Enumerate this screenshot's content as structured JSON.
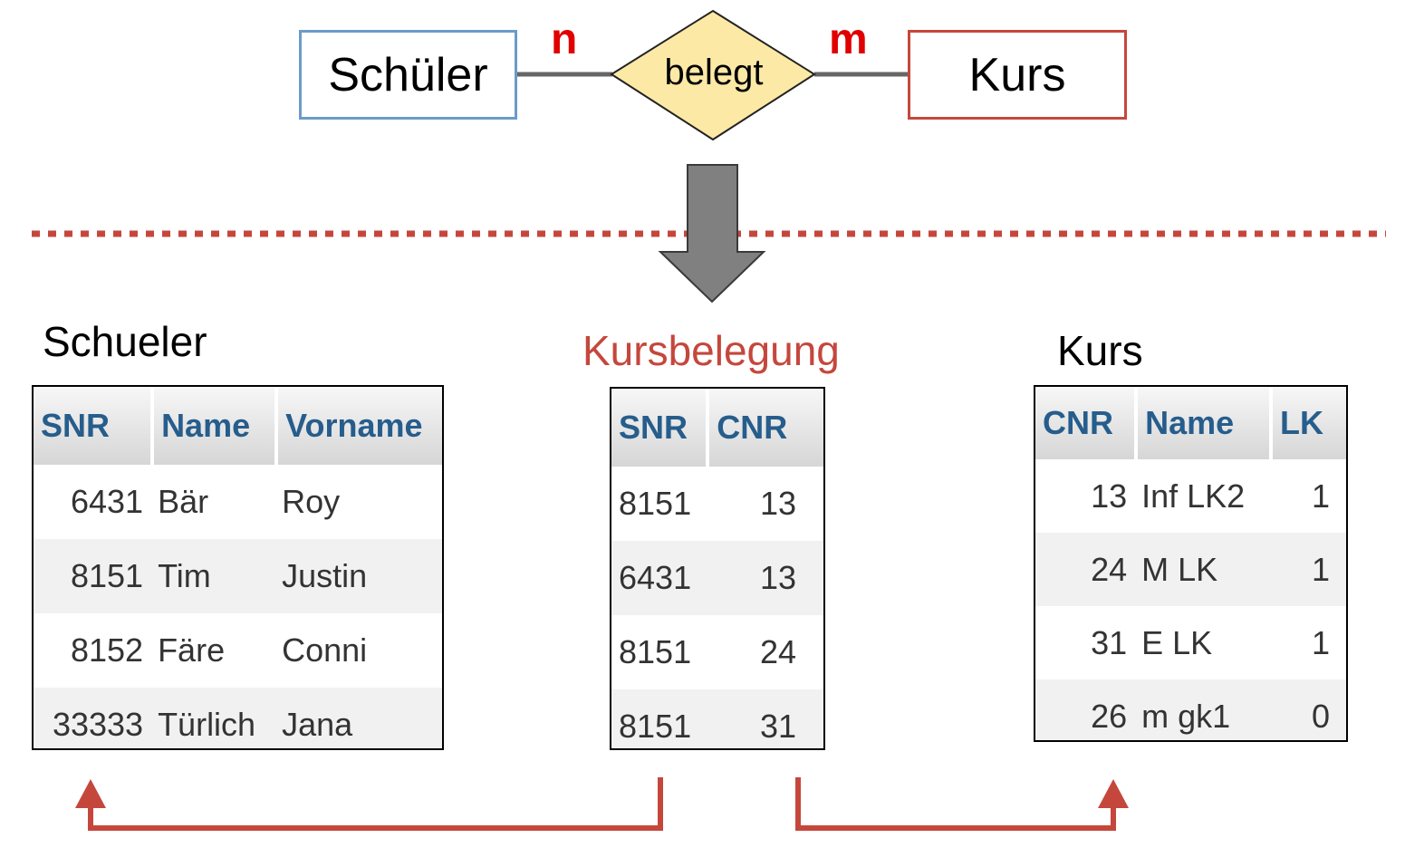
{
  "er": {
    "entity_left": "Schüler",
    "relationship": "belegt",
    "entity_right": "Kurs",
    "card_left": "n",
    "card_right": "m"
  },
  "colors": {
    "entity_left_border": "#6b9bc9",
    "entity_right_border": "#c5473c",
    "relationship_fill": "#fde9a6",
    "cardinality": "#e00000",
    "divider": "#c5473c",
    "arrow": "#808080",
    "fk_arrows": "#c5473c",
    "header_text": "#265d8c"
  },
  "tables": {
    "schueler": {
      "title": "Schueler",
      "headers": [
        "SNR",
        "Name",
        "Vorname"
      ],
      "rows": [
        [
          "6431",
          "Bär",
          "Roy"
        ],
        [
          "8151",
          "Tim",
          "Justin"
        ],
        [
          "8152",
          "Färe",
          "Conni"
        ],
        [
          "33333",
          "Türlich",
          "Jana"
        ]
      ]
    },
    "kursbelegung": {
      "title": "Kursbelegung",
      "headers": [
        "SNR",
        "CNR"
      ],
      "rows": [
        [
          "8151",
          "13"
        ],
        [
          "6431",
          "13"
        ],
        [
          "8151",
          "24"
        ],
        [
          "8151",
          "31"
        ]
      ]
    },
    "kurs": {
      "title": "Kurs",
      "headers": [
        "CNR",
        "Name",
        "LK"
      ],
      "rows": [
        [
          "13",
          "Inf LK2",
          "1"
        ],
        [
          "24",
          "M LK",
          "1"
        ],
        [
          "31",
          "E LK",
          "1"
        ],
        [
          "26",
          "m gk1",
          "0"
        ]
      ]
    }
  }
}
